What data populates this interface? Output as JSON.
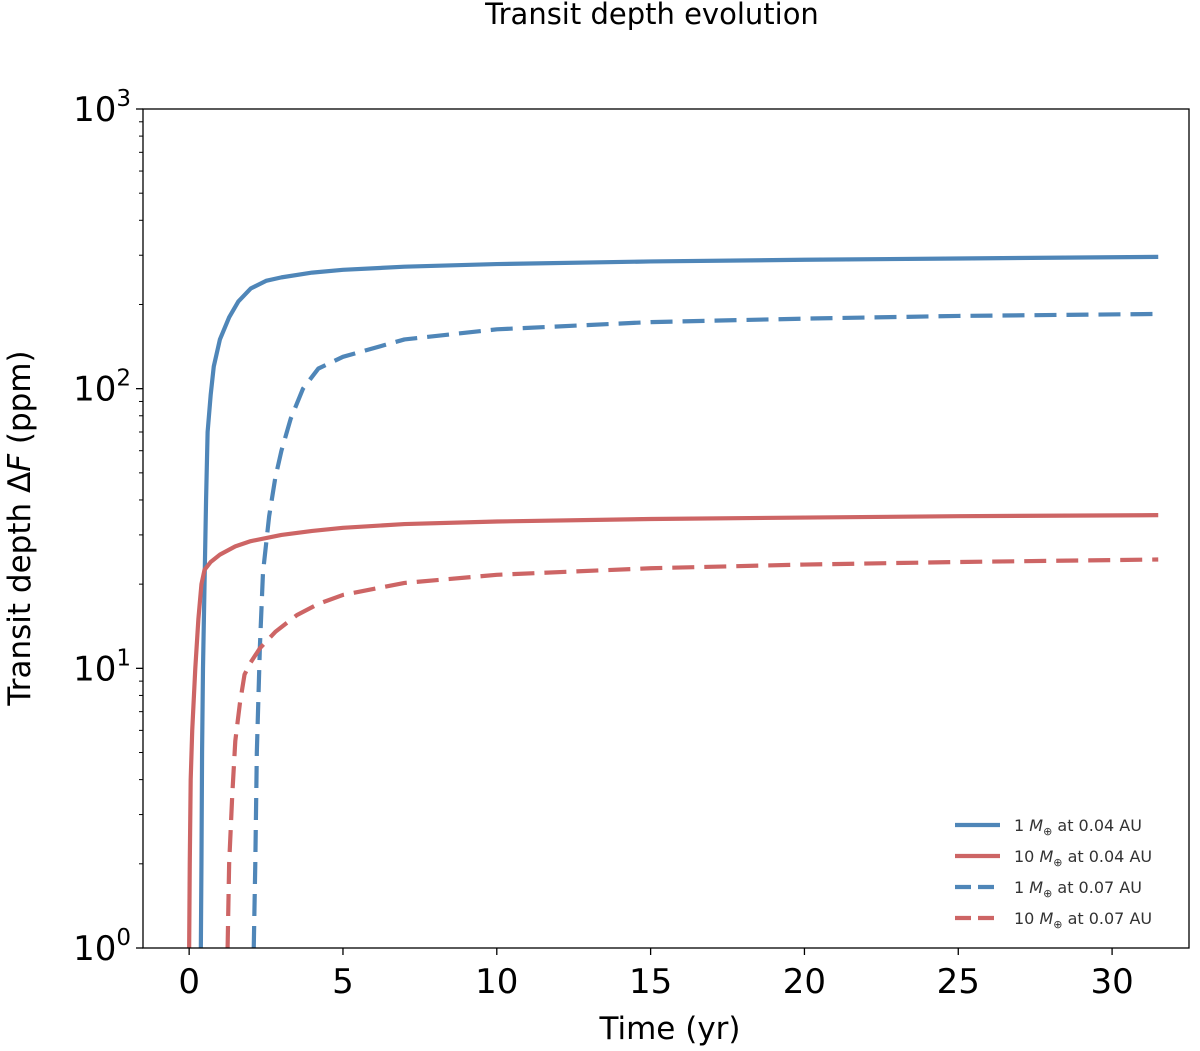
{
  "chart_data": {
    "type": "line",
    "title": "Transit depth evolution",
    "xlabel": "Time (yr)",
    "ylabel_prefix": "Transit depth Δ",
    "ylabel_var": "F",
    "ylabel_suffix": " (ppm)",
    "xlim": [
      -1.5,
      32.5
    ],
    "ylim": [
      1,
      1000
    ],
    "yscale": "log",
    "x_ticks": [
      0,
      5,
      10,
      15,
      20,
      25,
      30
    ],
    "x_tick_labels": [
      "0",
      "5",
      "10",
      "15",
      "20",
      "25",
      "30"
    ],
    "y_ticks": [
      {
        "value": 1,
        "base": "10",
        "exp": "0"
      },
      {
        "value": 10,
        "base": "10",
        "exp": "1"
      },
      {
        "value": 100,
        "base": "10",
        "exp": "2"
      },
      {
        "value": 1000,
        "base": "10",
        "exp": "3"
      }
    ],
    "legend_position": "bottom-right",
    "series": [
      {
        "id": "s1",
        "name": "1 M⊕ at 0.04 AU",
        "legend_pre": "1 ",
        "legend_sym": "M",
        "legend_sub": "⊕",
        "legend_post": " at 0.04 AU",
        "color": "#4f86b8",
        "style": "solid",
        "points": [
          [
            0.38,
            1
          ],
          [
            0.4,
            2
          ],
          [
            0.42,
            5
          ],
          [
            0.45,
            10
          ],
          [
            0.5,
            20
          ],
          [
            0.55,
            40
          ],
          [
            0.6,
            70
          ],
          [
            0.7,
            95
          ],
          [
            0.8,
            120
          ],
          [
            1.0,
            150
          ],
          [
            1.3,
            180
          ],
          [
            1.6,
            205
          ],
          [
            2.0,
            228
          ],
          [
            2.5,
            243
          ],
          [
            3,
            250
          ],
          [
            4,
            260
          ],
          [
            5,
            266
          ],
          [
            7,
            273
          ],
          [
            10,
            279
          ],
          [
            15,
            285
          ],
          [
            20,
            289
          ],
          [
            25,
            292
          ],
          [
            31.5,
            296
          ]
        ]
      },
      {
        "id": "s2",
        "name": "10 M⊕ at 0.04 AU",
        "legend_pre": "10 ",
        "legend_sym": "M",
        "legend_sub": "⊕",
        "legend_post": " at 0.04 AU",
        "color": "#cd6565",
        "style": "solid",
        "points": [
          [
            0.0,
            1
          ],
          [
            0.02,
            2
          ],
          [
            0.05,
            4
          ],
          [
            0.1,
            6
          ],
          [
            0.2,
            10
          ],
          [
            0.3,
            15
          ],
          [
            0.4,
            20
          ],
          [
            0.5,
            22.5
          ],
          [
            0.7,
            24
          ],
          [
            1.0,
            25.5
          ],
          [
            1.5,
            27.3
          ],
          [
            2,
            28.5
          ],
          [
            3,
            30
          ],
          [
            4,
            31
          ],
          [
            5,
            31.8
          ],
          [
            7,
            32.8
          ],
          [
            10,
            33.5
          ],
          [
            15,
            34.2
          ],
          [
            20,
            34.6
          ],
          [
            25,
            35
          ],
          [
            31.5,
            35.3
          ]
        ]
      },
      {
        "id": "s3",
        "name": "1 M⊕ at 0.07 AU",
        "legend_pre": "1 ",
        "legend_sym": "M",
        "legend_sub": "⊕",
        "legend_post": " at 0.07 AU",
        "color": "#4f86b8",
        "style": "dashed",
        "points": [
          [
            2.1,
            1
          ],
          [
            2.15,
            2
          ],
          [
            2.2,
            5
          ],
          [
            2.3,
            12
          ],
          [
            2.4,
            22
          ],
          [
            2.6,
            35
          ],
          [
            2.8,
            48
          ],
          [
            3.0,
            60
          ],
          [
            3.3,
            78
          ],
          [
            3.7,
            100
          ],
          [
            4.2,
            118
          ],
          [
            5,
            130
          ],
          [
            7,
            150
          ],
          [
            10,
            163
          ],
          [
            15,
            173
          ],
          [
            20,
            178
          ],
          [
            25,
            182
          ],
          [
            31.5,
            185
          ]
        ]
      },
      {
        "id": "s4",
        "name": "10 M⊕ at 0.07 AU",
        "legend_pre": "10 ",
        "legend_sym": "M",
        "legend_sub": "⊕",
        "legend_post": " at 0.07 AU",
        "color": "#cd6565",
        "style": "dashed",
        "points": [
          [
            1.25,
            1
          ],
          [
            1.3,
            2
          ],
          [
            1.4,
            3.5
          ],
          [
            1.5,
            5.5
          ],
          [
            1.65,
            7.5
          ],
          [
            1.8,
            9.5
          ],
          [
            2.0,
            10.5
          ],
          [
            2.3,
            11.8
          ],
          [
            2.8,
            13.5
          ],
          [
            3.5,
            15.5
          ],
          [
            4.2,
            17
          ],
          [
            5,
            18.3
          ],
          [
            7,
            20.2
          ],
          [
            10,
            21.6
          ],
          [
            15,
            22.8
          ],
          [
            20,
            23.5
          ],
          [
            25,
            24
          ],
          [
            31.5,
            24.5
          ]
        ]
      }
    ]
  }
}
